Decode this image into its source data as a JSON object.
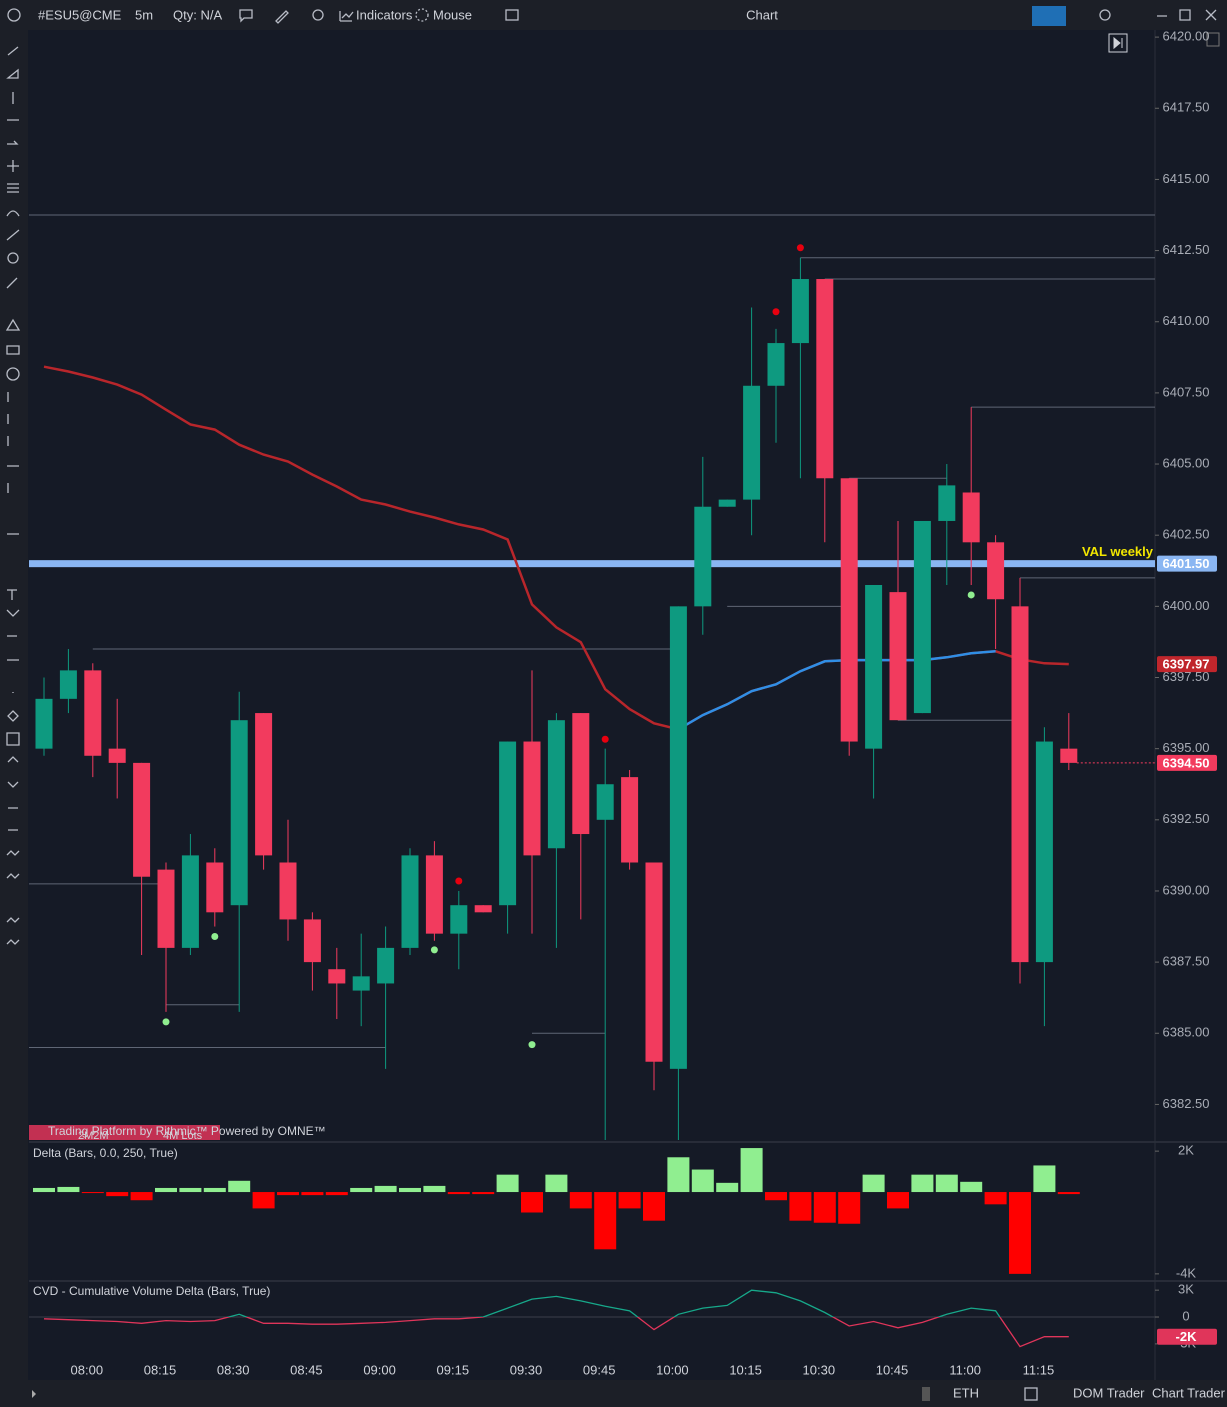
{
  "toolbar": {
    "symbol": "#ESU5@CME",
    "interval": "5m",
    "qty": "Qty: N/A",
    "indicators": "Indicators",
    "mouse": "Mouse",
    "title": "Chart"
  },
  "footer": {
    "session": "ETH",
    "dom": "DOM Trader",
    "chart_trader": "Chart Trader"
  },
  "watermark": "Trading Platform by Rithmic™ Powered by OMNE™",
  "profile_labels": [
    "2M2M",
    "4M Lots"
  ],
  "chart_data": [
    {
      "type": "candlestick",
      "categories": [
        "07:50",
        "07:55",
        "08:00",
        "08:05",
        "08:10",
        "08:15",
        "08:20",
        "08:25",
        "08:30",
        "08:35",
        "08:40",
        "08:45",
        "08:50",
        "08:55",
        "09:00",
        "09:05",
        "09:10",
        "09:15",
        "09:20",
        "09:25",
        "09:30",
        "09:35",
        "09:40",
        "09:45",
        "09:50",
        "09:55",
        "10:00",
        "10:05",
        "10:10",
        "10:15",
        "10:20",
        "10:25",
        "10:30",
        "10:35",
        "10:40",
        "10:45",
        "10:50",
        "10:55",
        "11:00",
        "11:05",
        "11:10",
        "11:15",
        "11:20"
      ],
      "open": [
        6395.0,
        6396.75,
        6397.75,
        6395.0,
        6394.5,
        6390.75,
        6388.0,
        6391.0,
        6389.5,
        6396.25,
        6391.0,
        6389.0,
        6387.25,
        6386.5,
        6386.75,
        6388.0,
        6391.25,
        6388.5,
        6389.5,
        6389.5,
        6395.25,
        6391.5,
        6396.25,
        6392.5,
        6394.0,
        6391.0,
        6383.75,
        6400.0,
        6403.5,
        6403.75,
        6407.75,
        6409.25,
        6411.5,
        6404.5,
        6395.0,
        6400.5,
        6396.25,
        6403.0,
        6404.0,
        6402.25,
        6400.0,
        6387.5,
        6395.0
      ],
      "high": [
        6397.5,
        6398.5,
        6398.0,
        6396.75,
        6394.5,
        6391.0,
        6392.0,
        6391.5,
        6397.0,
        6396.25,
        6392.5,
        6389.25,
        6388.0,
        6388.5,
        6388.75,
        6391.5,
        6391.75,
        6390.0,
        6389.5,
        6395.25,
        6397.75,
        6396.25,
        6396.25,
        6395.0,
        6394.25,
        6391.0,
        6400.0,
        6405.25,
        6403.75,
        6410.5,
        6409.75,
        6412.25,
        6411.5,
        6404.5,
        6400.75,
        6403.0,
        6403.0,
        6405.0,
        6407.0,
        6402.5,
        6401.0,
        6395.75,
        6396.25
      ],
      "low": [
        6394.75,
        6396.25,
        6394.0,
        6393.25,
        6387.75,
        6385.75,
        6387.75,
        6388.75,
        6385.75,
        6390.75,
        6388.25,
        6386.5,
        6385.5,
        6385.25,
        6383.75,
        6387.75,
        6388.25,
        6387.25,
        6389.25,
        6388.5,
        6388.5,
        6388.0,
        6389.0,
        6381.25,
        6390.75,
        6383.0,
        6381.25,
        6399.0,
        6403.5,
        6402.5,
        6405.75,
        6404.5,
        6402.25,
        6394.75,
        6393.25,
        6396.0,
        6396.25,
        6400.75,
        6400.75,
        6398.5,
        6386.75,
        6385.25,
        6394.25
      ],
      "close": [
        6396.75,
        6397.75,
        6394.75,
        6394.5,
        6390.5,
        6388.0,
        6391.25,
        6389.25,
        6396.0,
        6391.25,
        6389.0,
        6387.5,
        6386.75,
        6387.0,
        6388.0,
        6391.25,
        6388.5,
        6389.5,
        6389.25,
        6395.25,
        6391.25,
        6396.0,
        6392.0,
        6393.75,
        6391.0,
        6384.0,
        6400.0,
        6403.5,
        6403.75,
        6407.75,
        6409.25,
        6411.5,
        6404.5,
        6395.25,
        6400.75,
        6396.0,
        6403.0,
        6404.25,
        6402.25,
        6400.25,
        6387.5,
        6395.25,
        6394.5
      ],
      "up_color": "#0e9a80",
      "down_color": "#f23b5e",
      "lines": [
        {
          "color": "#b8262b",
          "values": [
            6408.42,
            6408.25,
            6408.04,
            6407.79,
            6407.44,
            6406.91,
            6406.39,
            6406.21,
            6405.68,
            6405.33,
            6405.09,
            6404.63,
            6404.21,
            6403.75,
            6403.58,
            6403.33,
            6403.12,
            6402.88,
            6402.7,
            6402.35,
            6400.07,
            6399.26,
            6398.74,
            6397.09,
            6396.39,
            6395.89,
            6395.68,
            6396.18,
            6396.56,
            6397.02,
            6397.26,
            6397.72,
            6398.07,
            6398.11,
            6398.11,
            6398.11,
            6398.11,
            6398.21,
            6398.35,
            6398.42,
            6398.14,
            6398.0,
            6397.97
          ]
        },
        {
          "color": "#2f8fe6",
          "values": [
            null,
            null,
            null,
            null,
            null,
            null,
            null,
            null,
            null,
            null,
            null,
            null,
            null,
            null,
            null,
            null,
            null,
            null,
            null,
            null,
            null,
            null,
            null,
            null,
            null,
            null,
            6395.68,
            6396.18,
            6396.56,
            6397.02,
            6397.26,
            6397.72,
            6398.07,
            6398.11,
            6398.11,
            6398.11,
            6398.11,
            6398.21,
            6398.35,
            6398.42,
            null,
            null,
            null
          ]
        }
      ],
      "markers": [
        {
          "color": "#e8000f",
          "values": [
            null,
            null,
            null,
            null,
            null,
            null,
            null,
            null,
            null,
            null,
            null,
            null,
            null,
            null,
            null,
            null,
            null,
            6390.35,
            null,
            null,
            null,
            null,
            null,
            6395.33,
            null,
            null,
            null,
            null,
            null,
            null,
            6410.35,
            6412.6,
            null,
            null,
            null,
            null,
            null,
            null,
            null,
            null,
            null,
            null,
            null
          ]
        },
        {
          "color": "#90ee90",
          "values": [
            null,
            null,
            null,
            null,
            null,
            6385.4,
            null,
            6388.4,
            null,
            null,
            null,
            null,
            null,
            null,
            null,
            null,
            6387.93,
            null,
            null,
            null,
            6384.6,
            null,
            null,
            null,
            null,
            null,
            null,
            null,
            null,
            null,
            null,
            null,
            null,
            null,
            null,
            null,
            null,
            null,
            6400.4,
            null,
            null,
            null,
            null
          ]
        }
      ],
      "levels": [
        {
          "value": 6413.75
        },
        {
          "value": 6412.25,
          "from": "10:25"
        },
        {
          "value": 6411.5,
          "from": "10:30"
        },
        {
          "value": 6407.0,
          "from": "11:00"
        },
        {
          "value": 6404.5,
          "from": "10:35",
          "to": "10:55"
        },
        {
          "value": 6401.0,
          "from": "11:10"
        },
        {
          "value": 6400.0,
          "from": "10:10",
          "to": "10:35"
        },
        {
          "value": 6398.5,
          "from": "08:00",
          "to": "10:00"
        },
        {
          "value": 6396.0,
          "from": "10:45",
          "to": "11:10"
        },
        {
          "value": 6390.25,
          "to": "08:15"
        },
        {
          "value": 6386.0,
          "from": "08:15",
          "to": "08:30"
        },
        {
          "value": 6385.0,
          "from": "09:30",
          "to": "09:45"
        },
        {
          "value": 6384.5,
          "to": "09:00"
        }
      ],
      "val_level": {
        "value": 6401.5,
        "label": "6401.50",
        "name": "VAL weekly",
        "color": "#8ab6f2"
      },
      "last_price": {
        "value": 6394.5,
        "label": "6394.50"
      },
      "ylim": [
        6381.25,
        6420.25
      ],
      "yticks": [
        {
          "value": 6382.5,
          "label": "6382.50"
        },
        {
          "value": 6385,
          "label": "6385.00"
        },
        {
          "value": 6387.5,
          "label": "6387.50"
        },
        {
          "value": 6390,
          "label": "6390.00"
        },
        {
          "value": 6392.5,
          "label": "6392.50"
        },
        {
          "value": 6395,
          "label": "6395.00"
        },
        {
          "value": 6397.5,
          "label": "6397.50"
        },
        {
          "value": 6400,
          "label": "6400.00"
        },
        {
          "value": 6402.5,
          "label": "6402.50"
        },
        {
          "value": 6405,
          "label": "6405.00"
        },
        {
          "value": 6407.5,
          "label": "6407.50"
        },
        {
          "value": 6410,
          "label": "6410.00"
        },
        {
          "value": 6412.5,
          "label": "6412.50"
        },
        {
          "value": 6415,
          "label": "6415.00"
        },
        {
          "value": 6417.5,
          "label": "6417.50"
        },
        {
          "value": 6420,
          "label": "6420.00"
        }
      ],
      "xticks": [
        "08:00",
        "08:15",
        "08:30",
        "08:45",
        "09:00",
        "09:15",
        "09:30",
        "09:45",
        "10:00",
        "10:15",
        "10:30",
        "10:45",
        "11:00",
        "11:15"
      ]
    },
    {
      "type": "bar",
      "title": "Delta (Bars, 0.0, 250, True)",
      "values": [
        200,
        250,
        -50,
        -200,
        -400,
        200,
        200,
        200,
        550,
        -800,
        -150,
        -150,
        -150,
        200,
        300,
        200,
        300,
        -100,
        -100,
        850,
        -1000,
        850,
        -800,
        -2800,
        -800,
        -1400,
        1700,
        1100,
        450,
        2150,
        -400,
        -1400,
        -1500,
        -1550,
        850,
        -800,
        850,
        850,
        500,
        -600,
        -4000,
        1300,
        -100
      ],
      "up_color": "#90ee90",
      "down_color": "#ff0000",
      "ylim": [
        -4300,
        2300
      ],
      "yticks": [
        {
          "value": 2000,
          "label": "2K"
        },
        {
          "value": -4000,
          "label": "-4K"
        }
      ]
    },
    {
      "type": "line",
      "title": "CVD - Cumulative Volume Delta (Bars, True)",
      "values": [
        -200,
        -300,
        -400,
        -500,
        -700,
        -400,
        -500,
        -400,
        300,
        -700,
        -700,
        -800,
        -800,
        -700,
        -600,
        -400,
        -200,
        -200,
        0,
        1000,
        2000,
        2300,
        1800,
        1200,
        700,
        -1400,
        300,
        1000,
        1300,
        3000,
        2700,
        1800,
        500,
        -1000,
        -500,
        -1200,
        -600,
        300,
        1000,
        700,
        -3300,
        -2200,
        -2200
      ],
      "value_labels": [
        null,
        null,
        null,
        null,
        null,
        null,
        null,
        null,
        null,
        null,
        null,
        null,
        null,
        null,
        null,
        null,
        null,
        null,
        null,
        null,
        null,
        null,
        null,
        null,
        null,
        null,
        null,
        null,
        null,
        null,
        null,
        null,
        null,
        null,
        null,
        null,
        null,
        null,
        null,
        null,
        null,
        null,
        "-2K"
      ],
      "up_color": "#17a88a",
      "down_color": "#e0355a",
      "ylim": [
        -4800,
        3800
      ],
      "yticks": [
        {
          "value": 3000,
          "label": "3K"
        },
        0,
        {
          "value": -3000,
          "label": "-3K"
        }
      ]
    }
  ]
}
